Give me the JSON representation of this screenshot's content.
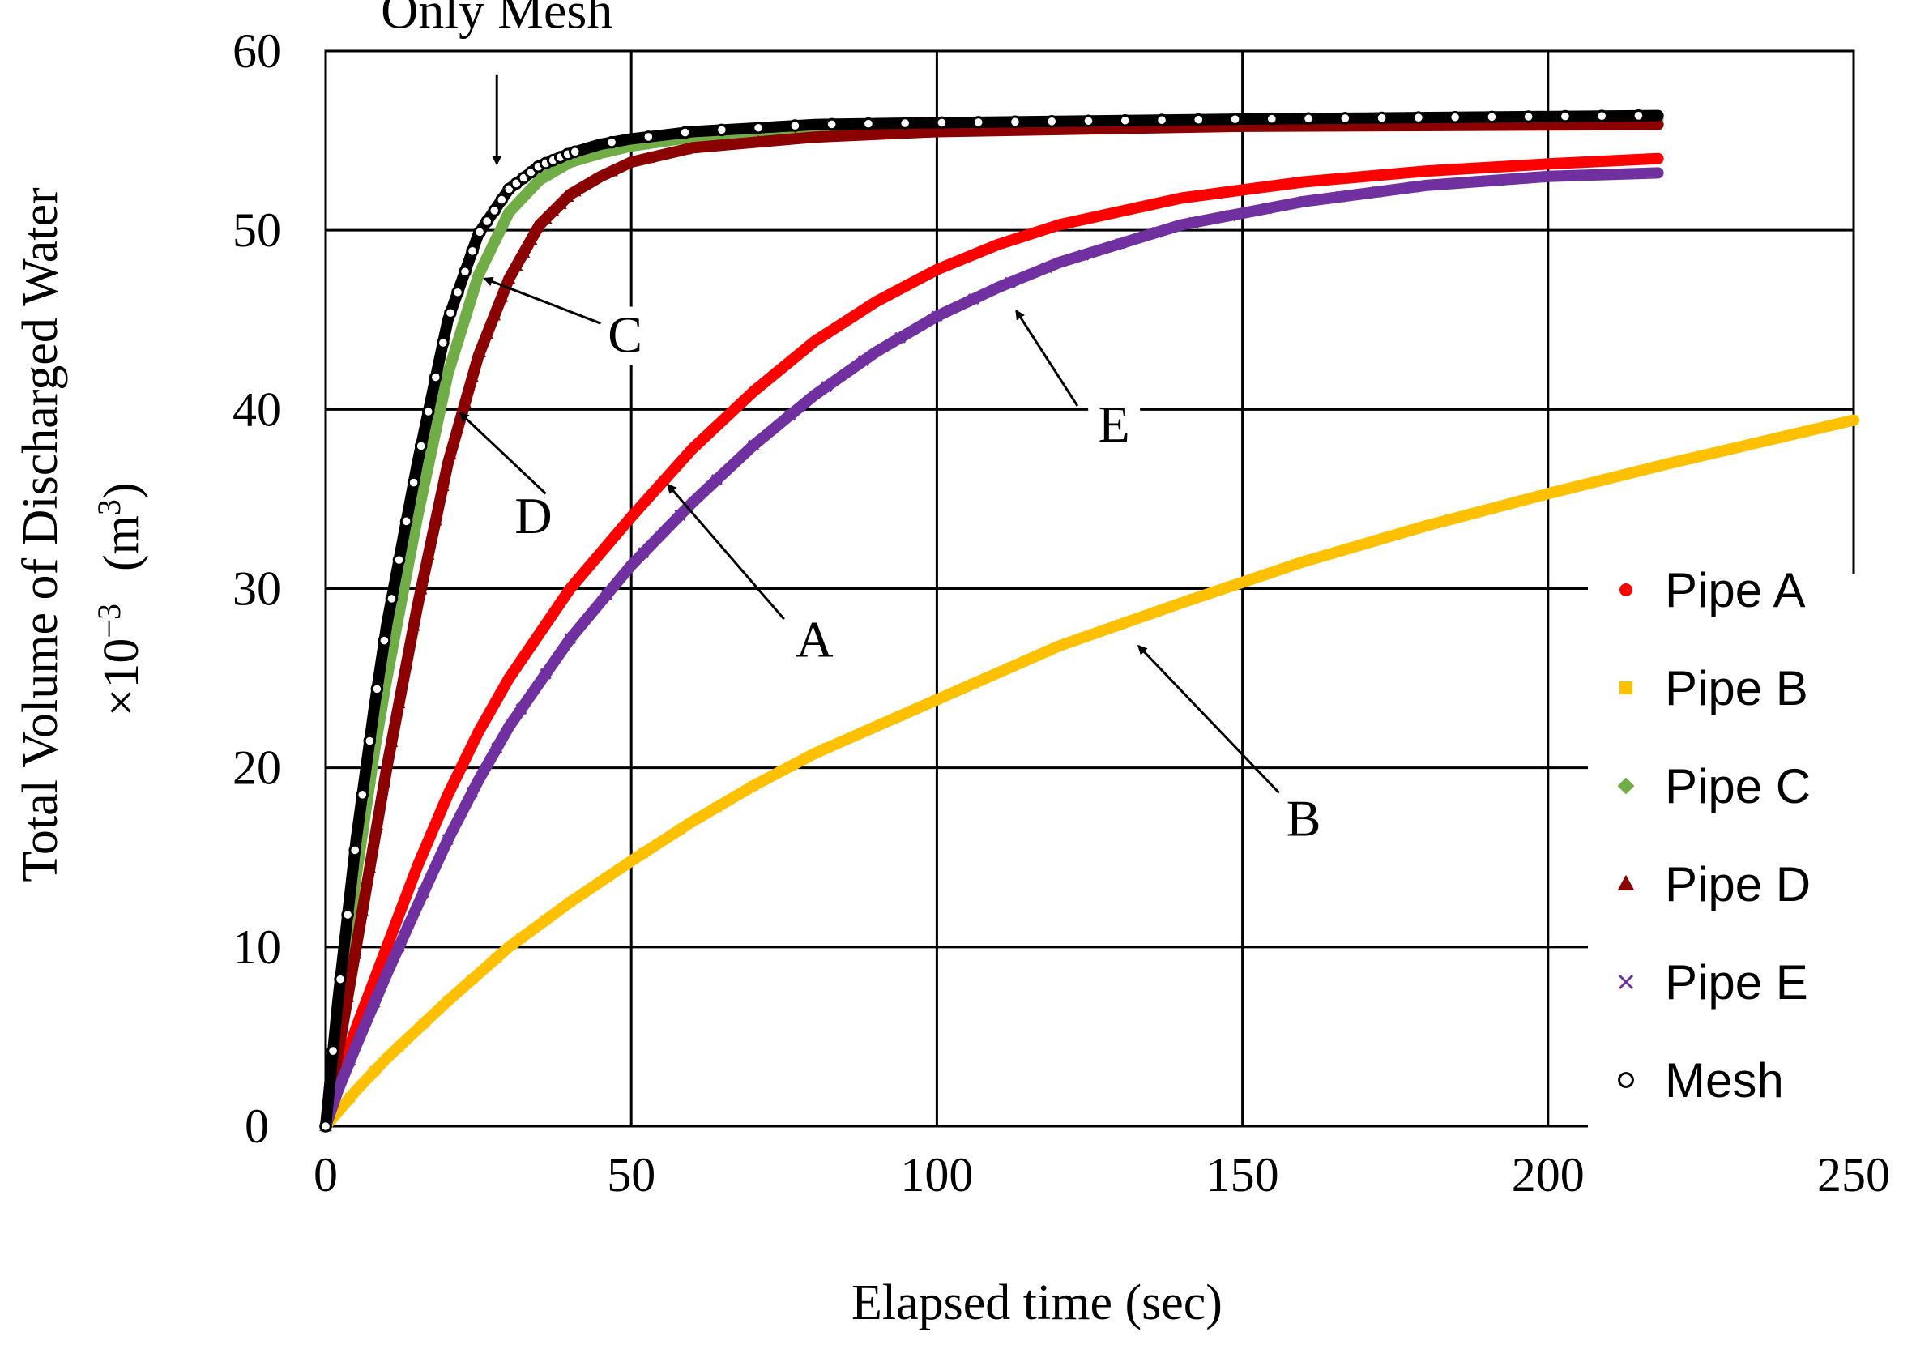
{
  "chart_data": {
    "type": "scatter",
    "title": "",
    "xlabel": "Elapsed time (sec)",
    "ylabel_line1": "Total Volume of Discharged Water",
    "ylabel_line2_prefix": "×10",
    "ylabel_line2_exp": "−3",
    "ylabel_line2_unit_open": "(m",
    "ylabel_line2_unit_exp": "3",
    "ylabel_line2_unit_close": ")",
    "xlim": [
      0,
      250
    ],
    "ylim": [
      0,
      60
    ],
    "xticks": [
      "0",
      "50",
      "100",
      "150",
      "200",
      "250"
    ],
    "yticks": [
      "0",
      "10",
      "20",
      "30",
      "40",
      "50",
      "60"
    ],
    "grid": true,
    "legend_position": "right",
    "series": [
      {
        "name": "Pipe A",
        "color": "#ff0000",
        "marker": "circle",
        "x": [
          0,
          2,
          5,
          10,
          15,
          20,
          25,
          30,
          40,
          50,
          60,
          70,
          80,
          90,
          100,
          110,
          120,
          140,
          160,
          180,
          200,
          218
        ],
        "y": [
          0,
          2.5,
          5.5,
          10,
          14.5,
          18.5,
          22,
          25,
          30,
          34,
          37.8,
          41,
          43.8,
          46,
          47.8,
          49.2,
          50.3,
          51.8,
          52.7,
          53.3,
          53.7,
          54
        ]
      },
      {
        "name": "Pipe B",
        "color": "#ffc000",
        "marker": "square",
        "x": [
          0,
          5,
          10,
          20,
          30,
          40,
          50,
          60,
          70,
          80,
          100,
          120,
          140,
          160,
          180,
          200,
          220,
          250
        ],
        "y": [
          0,
          2,
          3.8,
          7,
          10,
          12.5,
          14.8,
          17,
          19,
          20.8,
          23.8,
          26.8,
          29.2,
          31.5,
          33.5,
          35.3,
          37,
          39.4
        ]
      },
      {
        "name": "Pipe C",
        "color": "#70ad47",
        "marker": "diamond",
        "x": [
          0,
          2,
          5,
          8,
          10,
          15,
          20,
          25,
          30,
          35,
          40,
          45,
          50,
          60,
          80,
          100,
          150,
          218
        ],
        "y": [
          0,
          6,
          14,
          21,
          25,
          34,
          42,
          47.5,
          51,
          52.8,
          53.8,
          54.3,
          54.7,
          55.2,
          55.6,
          55.8,
          56.0,
          56.2
        ]
      },
      {
        "name": "Pipe D",
        "color": "#8b0000",
        "marker": "triangle",
        "x": [
          0,
          2,
          5,
          8,
          10,
          15,
          20,
          25,
          30,
          35,
          40,
          45,
          50,
          60,
          80,
          100,
          150,
          218
        ],
        "y": [
          0,
          4,
          10,
          16,
          20,
          29,
          37,
          43,
          47.3,
          50.3,
          52,
          53,
          53.8,
          54.6,
          55.2,
          55.5,
          55.8,
          55.9
        ]
      },
      {
        "name": "Pipe E",
        "color": "#7030a0",
        "marker": "x",
        "x": [
          0,
          2,
          5,
          10,
          15,
          20,
          25,
          30,
          40,
          50,
          60,
          70,
          80,
          90,
          100,
          110,
          120,
          140,
          160,
          180,
          200,
          218
        ],
        "y": [
          0,
          2,
          4.5,
          8.5,
          12.3,
          16,
          19.3,
          22.3,
          27.2,
          31.3,
          34.8,
          38,
          40.8,
          43.2,
          45.2,
          46.8,
          48.2,
          50.3,
          51.6,
          52.5,
          53,
          53.2
        ]
      },
      {
        "name": "Mesh",
        "color": "#000000",
        "marker": "open-circle",
        "x": [
          0,
          2,
          5,
          8,
          10,
          15,
          20,
          25,
          30,
          35,
          40,
          45,
          50,
          60,
          80,
          100,
          150,
          218
        ],
        "y": [
          0,
          7,
          16,
          23.5,
          28,
          37,
          45,
          49.8,
          52.3,
          53.6,
          54.3,
          54.8,
          55.1,
          55.5,
          55.9,
          56.0,
          56.2,
          56.4
        ]
      }
    ],
    "annotations": [
      {
        "text": "Only Mesh",
        "text_x": 28,
        "text_y": 61.3,
        "arrow_from_x": 28,
        "arrow_from_y": 58.7,
        "arrow_to_x": 28,
        "arrow_to_y": 53.7
      },
      {
        "text": "C",
        "text_x": 49,
        "text_y": 43.2,
        "arrow_from_x": 45,
        "arrow_from_y": 44.8,
        "arrow_to_x": 26,
        "arrow_to_y": 47.3
      },
      {
        "text": "D",
        "text_x": 34,
        "text_y": 33.1,
        "arrow_from_x": 36,
        "arrow_from_y": 35.3,
        "arrow_to_x": 22,
        "arrow_to_y": 39.8
      },
      {
        "text": "A",
        "text_x": 80,
        "text_y": 26.2,
        "arrow_from_x": 75,
        "arrow_from_y": 28.3,
        "arrow_to_x": 56,
        "arrow_to_y": 35.8
      },
      {
        "text": "E",
        "text_x": 129,
        "text_y": 38.2,
        "arrow_from_x": 123,
        "arrow_from_y": 40.2,
        "arrow_to_x": 113,
        "arrow_to_y": 45.5
      },
      {
        "text": "B",
        "text_x": 160,
        "text_y": 16.2,
        "arrow_from_x": 156,
        "arrow_from_y": 18.6,
        "arrow_to_x": 133,
        "arrow_to_y": 26.8
      }
    ]
  }
}
